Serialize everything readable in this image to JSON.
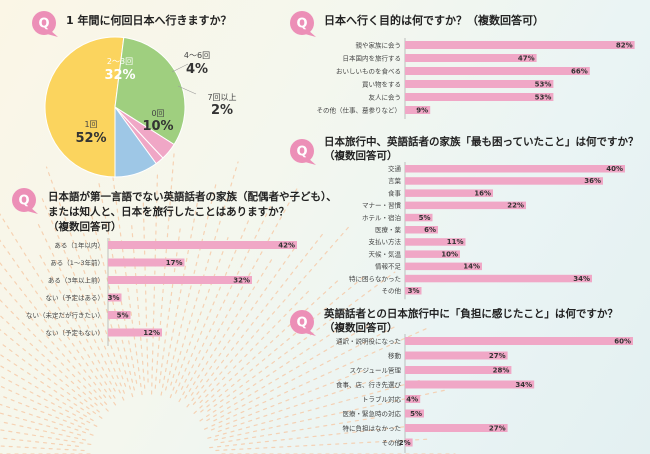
{
  "colors": {
    "bar": "#f0a7c6",
    "pie_green": "#9fcf7f",
    "pie_yellow": "#fbd45e",
    "pie_blue": "#9ec7e6",
    "pie_pink": "#f0a7c6",
    "icon": "#ec8fb7"
  },
  "q_icon_glyph": "Q",
  "q1": {
    "title": "1 年間に何回日本へ行きますか？",
    "labels": {
      "s1": "1回",
      "s2": "2～3回",
      "s0": "0回",
      "s4": "4～6回",
      "s7": "7回以上"
    },
    "values": {
      "s1": "52%",
      "s2": "32%",
      "s0": "10%",
      "s4": "4%",
      "s7": "2%"
    }
  },
  "q2": {
    "title": "日本へ行く目的は何ですか？（複数回答可）"
  },
  "q3": {
    "title_l1": "日本旅行中、英語話者の家族「最も困っていたこと」は何ですか？",
    "title_l2": "（複数回答可）"
  },
  "q4": {
    "title_l1": "日本語が第一言語でない英語話者の家族（配偶者や子ども）、",
    "title_l2": "または知人と、日本を旅行したことはありますか？",
    "title_l3": "（複数回答可）"
  },
  "q5": {
    "title_l1": "英語話者との日本旅行中に「負担に感じたこと」は何ですか？",
    "title_l2": "（複数回答可）"
  },
  "chart_data": [
    {
      "type": "pie",
      "title": "1 年間に何回日本へ行きますか？",
      "categories": [
        "1回",
        "2～3回",
        "4～6回",
        "7回以上",
        "0回"
      ],
      "values": [
        52,
        32,
        4,
        2,
        10
      ]
    },
    {
      "type": "bar",
      "title": "日本へ行く目的は何ですか？（複数回答可）",
      "categories": [
        "親や家族に会う",
        "日本国内を旅行する",
        "おいしいものを食べる",
        "買い物をする",
        "友人に会う",
        "その他（仕事、墓参りなど）"
      ],
      "values": [
        82,
        47,
        66,
        53,
        53,
        9
      ]
    },
    {
      "type": "bar",
      "title": "日本旅行中、英語話者の家族「最も困っていたこと」は何ですか？（複数回答可）",
      "categories": [
        "交通",
        "言葉",
        "食事",
        "マナー・習慣",
        "ホテル・宿泊",
        "医療・薬",
        "支払い方法",
        "天候・気温",
        "情報不足",
        "特に困らなかった",
        "その他"
      ],
      "values": [
        40,
        36,
        16,
        22,
        5,
        6,
        11,
        10,
        14,
        34,
        3
      ]
    },
    {
      "type": "bar",
      "title": "日本語が第一言語でない英語話者の家族（配偶者や子ども）、または知人と、日本を旅行したことはありますか？（複数回答可）",
      "categories": [
        "ある（1年以内）",
        "ある（1～3年前）",
        "ある（3年以上前）",
        "ない（予定はある）",
        "ない（未定だが行きたい）",
        "ない（予定もない）"
      ],
      "values": [
        42,
        17,
        32,
        3,
        5,
        12
      ]
    },
    {
      "type": "bar",
      "title": "英語話者との日本旅行中に「負担に感じたこと」は何ですか？（複数回答可）",
      "categories": [
        "通訳・説明役になった",
        "移動",
        "スケジュール管理",
        "食事、店、行き先選び",
        "トラブル対応",
        "医療・緊急時の対応",
        "特に負担はなかった",
        "その他"
      ],
      "values": [
        60,
        27,
        28,
        34,
        4,
        5,
        27,
        2
      ]
    }
  ]
}
